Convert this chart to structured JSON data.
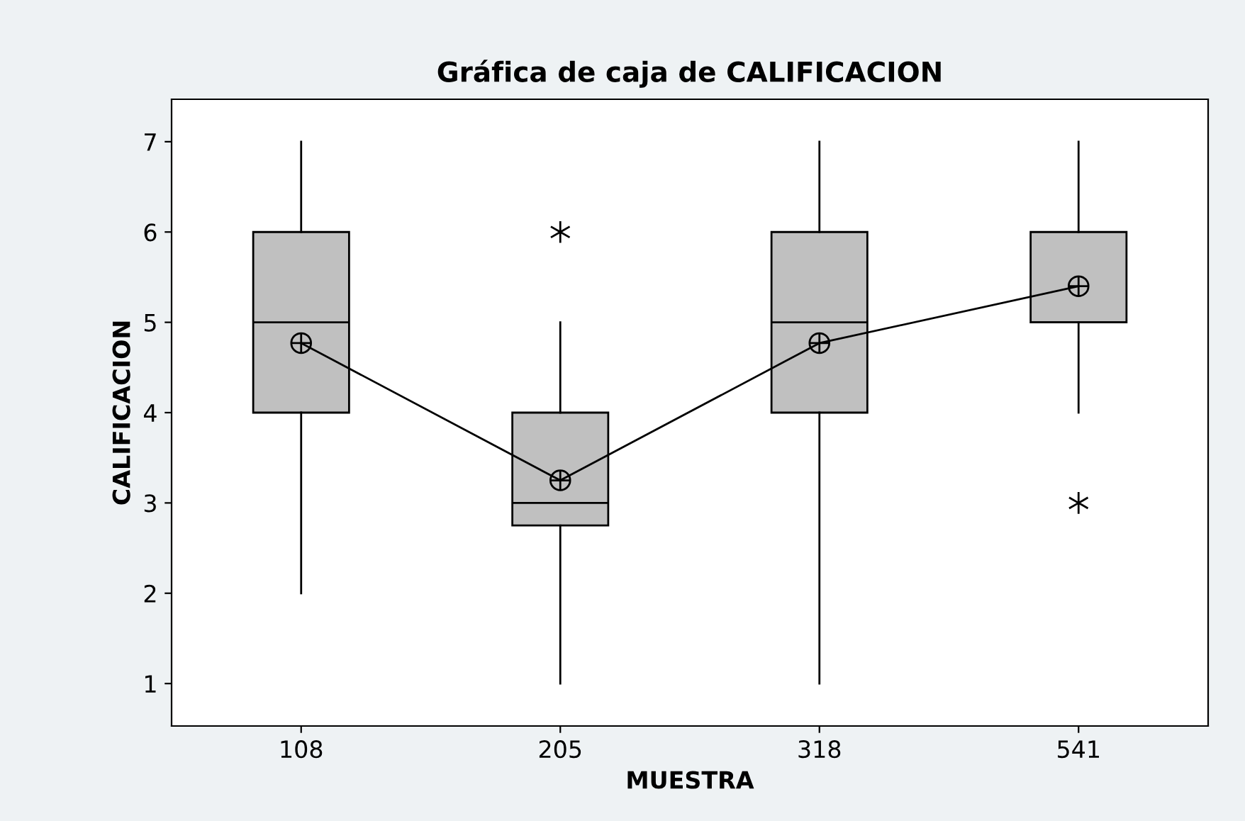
{
  "chart_data": {
    "type": "box",
    "title": "Gráfica de caja de CALIFICACION",
    "xlabel": "MUESTRA",
    "ylabel": "CALIFICACION",
    "categories": [
      "108",
      "205",
      "318",
      "541"
    ],
    "boxes": [
      {
        "low": 2,
        "q1": 4,
        "median": 5,
        "q3": 6,
        "high": 7
      },
      {
        "low": 1,
        "q1": 2.75,
        "median": 3,
        "q3": 4,
        "high": 5,
        "outliers": [
          6
        ]
      },
      {
        "low": 1,
        "q1": 4,
        "median": 5,
        "q3": 6,
        "high": 7
      },
      {
        "low": 4,
        "q1": 5,
        "median": 5,
        "q3": 6,
        "high": 7,
        "outliers": [
          3
        ]
      }
    ],
    "color": "#c0c0c0",
    "series": [
      {
        "type": "line",
        "color": "#000000",
        "marker": "circle",
        "values": [
          4.77,
          3.25,
          4.77,
          5.4
        ]
      }
    ],
    "ylim": [
      0.53,
      7.47
    ],
    "yticks": [
      1,
      2,
      3,
      4,
      5,
      6,
      7
    ],
    "grid": false,
    "legend": false
  }
}
